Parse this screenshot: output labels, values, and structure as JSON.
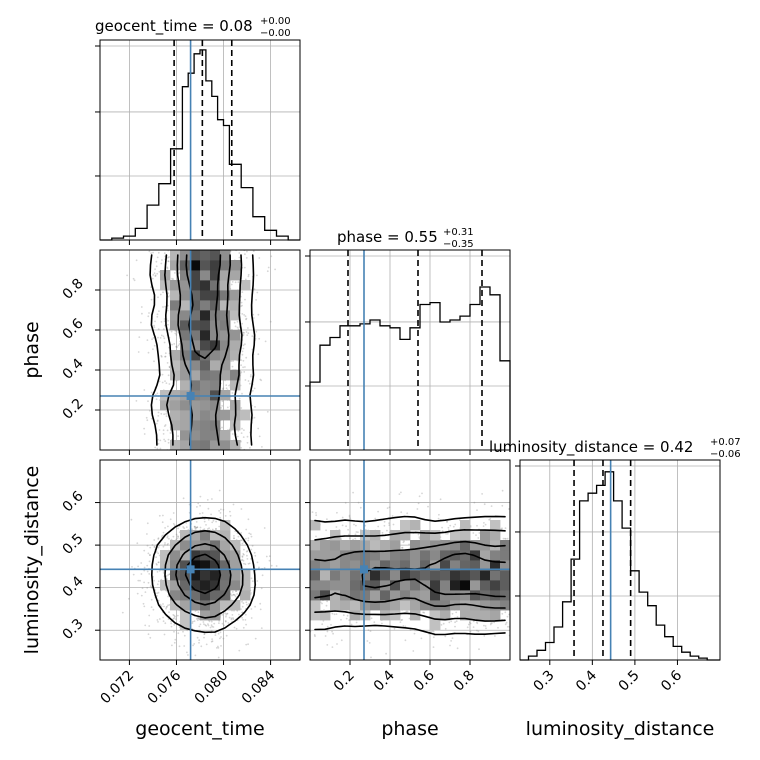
{
  "chart_data": {
    "type": "corner",
    "parameters": [
      {
        "name": "geocent_time",
        "axis_label": "geocent_time",
        "range": [
          0.0695,
          0.0865
        ],
        "ticks": [
          0.072,
          0.076,
          0.08,
          0.084
        ],
        "tick_labels": [
          "0.072",
          "0.076",
          "0.080",
          "0.084"
        ],
        "title_main": "geocent_time = 0.08",
        "title_plus": "+0.00",
        "title_minus": "−0.00",
        "truth": 0.0772,
        "quantiles": [
          0.0758,
          0.0782,
          0.0807
        ],
        "hist_bins": [
          0.0695,
          0.0705,
          0.0715,
          0.0725,
          0.0735,
          0.0745,
          0.0755,
          0.0765,
          0.077,
          0.0775,
          0.078,
          0.0785,
          0.079,
          0.0795,
          0.08,
          0.0805,
          0.0815,
          0.0825,
          0.0835,
          0.0845,
          0.0855,
          0.0865
        ],
        "hist_counts": [
          0.0,
          0.01,
          0.02,
          0.06,
          0.18,
          0.29,
          0.47,
          0.79,
          0.86,
          0.96,
          0.98,
          0.82,
          0.74,
          0.62,
          0.59,
          0.39,
          0.27,
          0.12,
          0.05,
          0.02,
          0.0
        ]
      },
      {
        "name": "phase",
        "axis_label": "phase",
        "range": [
          0.0,
          1.0
        ],
        "ticks": [
          0.2,
          0.4,
          0.6,
          0.8
        ],
        "tick_labels": [
          "0.2",
          "0.4",
          "0.6",
          "0.8"
        ],
        "title_main": "phase = 0.55",
        "title_plus": "+0.31",
        "title_minus": "−0.35",
        "truth": 0.27,
        "quantiles": [
          0.19,
          0.54,
          0.86
        ],
        "hist_bins": [
          0.0,
          0.05,
          0.1,
          0.15,
          0.2,
          0.25,
          0.3,
          0.35,
          0.4,
          0.45,
          0.5,
          0.55,
          0.6,
          0.65,
          0.7,
          0.75,
          0.8,
          0.85,
          0.9,
          0.95,
          1.0
        ],
        "hist_counts": [
          0.35,
          0.54,
          0.58,
          0.64,
          0.64,
          0.65,
          0.67,
          0.64,
          0.63,
          0.57,
          0.63,
          0.75,
          0.76,
          0.66,
          0.67,
          0.69,
          0.75,
          0.84,
          0.8,
          0.46
        ]
      },
      {
        "name": "luminosity_distance",
        "axis_label": "luminosity_distance",
        "range": [
          0.23,
          0.7
        ],
        "ticks": [
          0.3,
          0.4,
          0.5,
          0.6
        ],
        "tick_labels": [
          "0.3",
          "0.4",
          "0.5",
          "0.6"
        ],
        "title_main": "luminosity_distance = 0.42",
        "title_plus": "+0.07",
        "title_minus": "−0.06",
        "truth": 0.443,
        "quantiles": [
          0.357,
          0.425,
          0.49
        ],
        "hist_bins": [
          0.23,
          0.25,
          0.27,
          0.29,
          0.31,
          0.33,
          0.35,
          0.37,
          0.39,
          0.41,
          0.43,
          0.45,
          0.47,
          0.49,
          0.51,
          0.53,
          0.55,
          0.57,
          0.59,
          0.61,
          0.63,
          0.65,
          0.67,
          0.7
        ],
        "hist_counts": [
          0.0,
          0.02,
          0.05,
          0.09,
          0.17,
          0.3,
          0.52,
          0.82,
          0.86,
          0.9,
          0.97,
          0.82,
          0.68,
          0.46,
          0.35,
          0.28,
          0.18,
          0.12,
          0.07,
          0.04,
          0.02,
          0.01,
          0.0
        ]
      }
    ],
    "truth_color": "#4682b4",
    "hist_color": "#000000",
    "quantile_style": "dashed",
    "grid": true,
    "contours": true,
    "scatter_points": true
  }
}
